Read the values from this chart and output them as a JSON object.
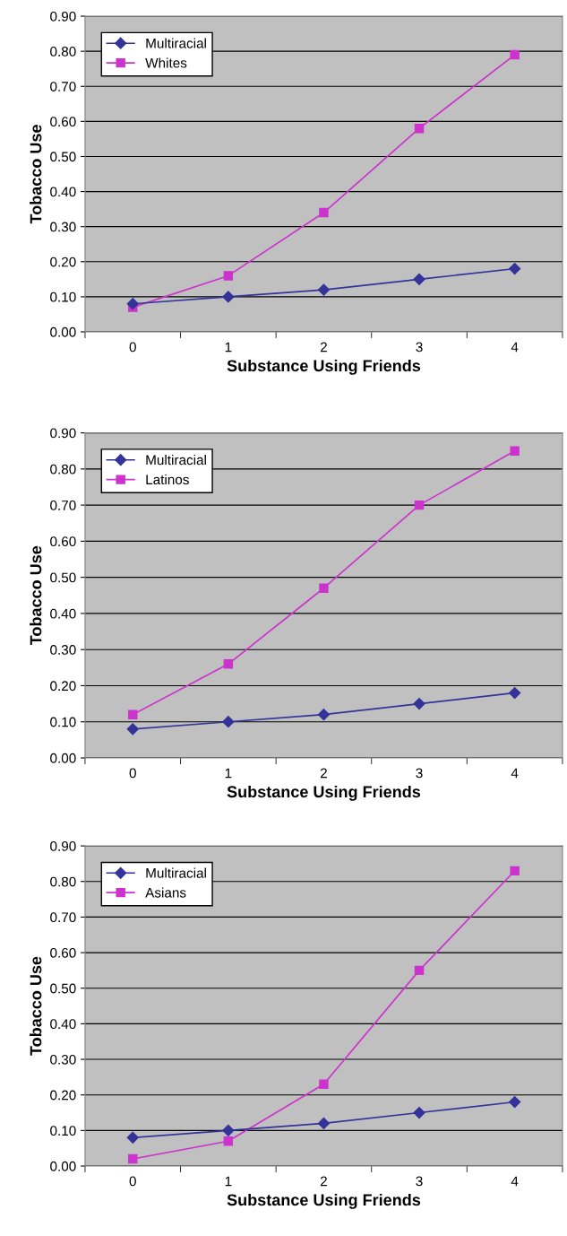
{
  "chart_data": [
    {
      "type": "line",
      "xlabel": "Substance Using Friends",
      "ylabel": "Tobacco Use",
      "categories": [
        "0",
        "1",
        "2",
        "3",
        "4"
      ],
      "series": [
        {
          "name": "Multiracial",
          "color": "#333399",
          "marker": "diamond",
          "values": [
            0.08,
            0.1,
            0.12,
            0.15,
            0.18
          ]
        },
        {
          "name": "Whites",
          "color": "#cc33cc",
          "marker": "square",
          "values": [
            0.07,
            0.16,
            0.34,
            0.58,
            0.79
          ]
        }
      ],
      "ylim": [
        0,
        0.9
      ],
      "yticks": [
        {
          "value": 0,
          "label": "0.00"
        },
        {
          "value": 0.1,
          "label": "0.10"
        },
        {
          "value": 0.2,
          "label": "0.20"
        },
        {
          "value": 0.3,
          "label": "0.30"
        },
        {
          "value": 0.4,
          "label": "0.40"
        },
        {
          "value": 0.5,
          "label": "0.50"
        },
        {
          "value": 0.6,
          "label": "0.60"
        },
        {
          "value": 0.7,
          "label": "0.70"
        },
        {
          "value": 0.8,
          "label": "0.80"
        },
        {
          "value": 0.9,
          "label": "0.90"
        }
      ],
      "grid": "y",
      "legend": "top left"
    },
    {
      "type": "line",
      "xlabel": "Substance Using Friends",
      "ylabel": "Tobacco Use",
      "categories": [
        "0",
        "1",
        "2",
        "3",
        "4"
      ],
      "series": [
        {
          "name": "Multiracial",
          "color": "#333399",
          "marker": "diamond",
          "values": [
            0.08,
            0.1,
            0.12,
            0.15,
            0.18
          ]
        },
        {
          "name": "Latinos",
          "color": "#cc33cc",
          "marker": "square",
          "values": [
            0.12,
            0.26,
            0.47,
            0.7,
            0.85
          ]
        }
      ],
      "ylim": [
        0,
        0.9
      ],
      "yticks": [
        {
          "value": 0,
          "label": "0.00"
        },
        {
          "value": 0.1,
          "label": "0.10"
        },
        {
          "value": 0.2,
          "label": "0.20"
        },
        {
          "value": 0.3,
          "label": "0.30"
        },
        {
          "value": 0.4,
          "label": "0.40"
        },
        {
          "value": 0.5,
          "label": "0.50"
        },
        {
          "value": 0.6,
          "label": "0.60"
        },
        {
          "value": 0.7,
          "label": "0.70"
        },
        {
          "value": 0.8,
          "label": "0.80"
        },
        {
          "value": 0.9,
          "label": "0.90"
        }
      ],
      "grid": "y",
      "legend": "top left"
    },
    {
      "type": "line",
      "xlabel": "Substance Using Friends",
      "ylabel": "Tobacco Use",
      "categories": [
        "0",
        "1",
        "2",
        "3",
        "4"
      ],
      "series": [
        {
          "name": "Multiracial",
          "color": "#333399",
          "marker": "diamond",
          "values": [
            0.08,
            0.1,
            0.12,
            0.15,
            0.18
          ]
        },
        {
          "name": "Asians",
          "color": "#cc33cc",
          "marker": "square",
          "values": [
            0.02,
            0.07,
            0.23,
            0.55,
            0.83
          ]
        }
      ],
      "ylim": [
        0,
        0.9
      ],
      "yticks": [
        {
          "value": 0,
          "label": "0.00"
        },
        {
          "value": 0.1,
          "label": "0.10"
        },
        {
          "value": 0.2,
          "label": "0.20"
        },
        {
          "value": 0.3,
          "label": "0.30"
        },
        {
          "value": 0.4,
          "label": "0.40"
        },
        {
          "value": 0.5,
          "label": "0.50"
        },
        {
          "value": 0.6,
          "label": "0.60"
        },
        {
          "value": 0.7,
          "label": "0.70"
        },
        {
          "value": 0.8,
          "label": "0.80"
        },
        {
          "value": 0.9,
          "label": "0.90"
        }
      ],
      "grid": "y",
      "legend": "top left"
    }
  ]
}
